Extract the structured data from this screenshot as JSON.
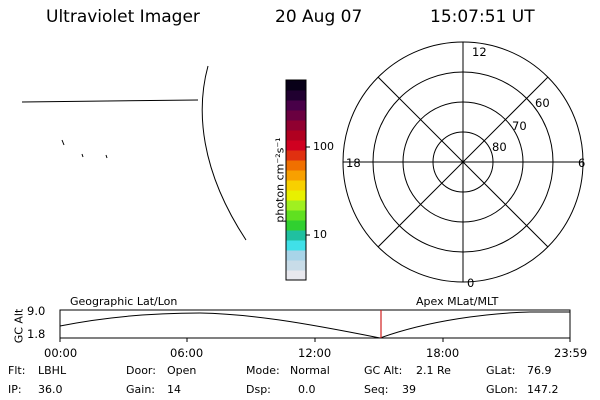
{
  "header": {
    "title": "Ultraviolet Imager",
    "date": "20 Aug 07",
    "time": "15:07:51 UT"
  },
  "colorbar": {
    "axis_label": "photon cm⁻²s⁻¹",
    "ticks": [
      {
        "label": "100",
        "value": 100
      },
      {
        "label": "10",
        "value": 10
      }
    ],
    "colors": [
      "#e8e8ee",
      "#c8dce8",
      "#a8d4e8",
      "#40e0e8",
      "#20c0a0",
      "#30d030",
      "#60e020",
      "#a0f020",
      "#e8f000",
      "#f8d000",
      "#f8a000",
      "#f07000",
      "#e03010",
      "#d00020",
      "#b00020",
      "#900030",
      "#6a0040",
      "#480048",
      "#200030",
      "#080018"
    ]
  },
  "polar_plot": {
    "clock_labels": {
      "top": "12",
      "right": "6",
      "bottom": "0",
      "left": "18"
    },
    "lat_labels": [
      "60",
      "70",
      "80"
    ],
    "lat_values": [
      60,
      70,
      80
    ]
  },
  "timeline": {
    "y_axis_label": "GC Alt",
    "y_ticks": [
      "9.0",
      "1.8"
    ],
    "left_label": "Geographic Lat/Lon",
    "right_label": "Apex MLat/MLT",
    "x_ticks": [
      "00:00",
      "06:00",
      "12:00",
      "18:00",
      "23:59"
    ],
    "cursor_time": "15:07:51",
    "cursor_color": "#d02020"
  },
  "footer": {
    "row1": [
      {
        "key": "Flt:",
        "value": "LBHL"
      },
      {
        "key": "Door:",
        "value": "Open"
      },
      {
        "key": "Mode:",
        "value": "Normal"
      },
      {
        "key": "GC Alt:",
        "value": "2.1 Re"
      },
      {
        "key": "GLat:",
        "value": "76.9"
      }
    ],
    "row2": [
      {
        "key": "IP:",
        "value": "36.0"
      },
      {
        "key": "Gain:",
        "value": "14"
      },
      {
        "key": "Dsp:",
        "value": "0.0"
      },
      {
        "key": "Seq:",
        "value": "39"
      },
      {
        "key": "GLon:",
        "value": "147.2"
      }
    ]
  }
}
